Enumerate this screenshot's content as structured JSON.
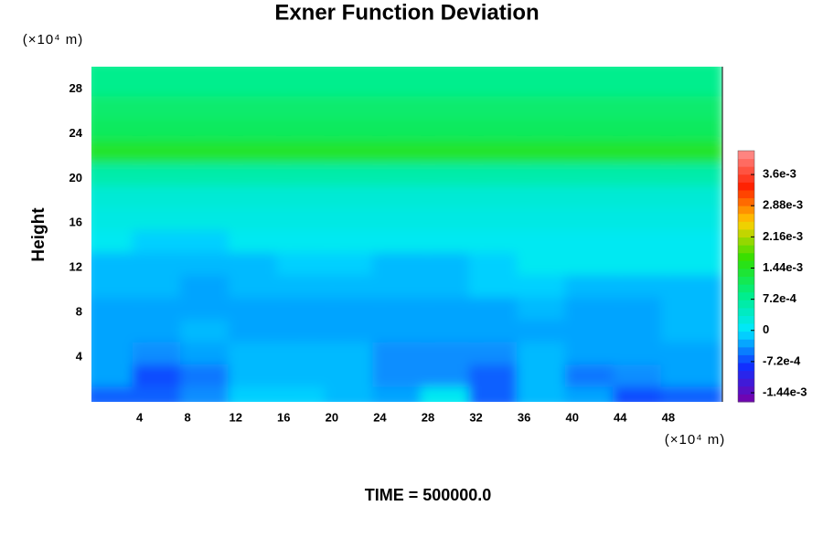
{
  "chart_data": {
    "type": "contour",
    "title": "Exner Function Deviation",
    "y_label": "Height",
    "y_unit": "(×10⁴ m)",
    "x_unit": "(×10⁴ m)",
    "footer": "TIME = 500000.0",
    "xlim": [
      0,
      52.5
    ],
    "ylim": [
      0,
      30
    ],
    "xticks": [
      4,
      8,
      12,
      16,
      20,
      24,
      28,
      32,
      36,
      40,
      44,
      48
    ],
    "yticks": [
      4,
      8,
      12,
      16,
      20,
      24,
      28
    ],
    "x": [
      2,
      6,
      10,
      14,
      18,
      22,
      26,
      30,
      34,
      38,
      42,
      46,
      50
    ],
    "y": [
      1,
      3,
      5,
      7,
      9,
      11,
      13,
      15,
      17,
      19,
      21,
      23,
      25,
      27,
      29
    ],
    "z": [
      [
        -0.0006,
        -0.0006,
        -0.0004,
        -0.0001,
        -0.0001,
        -0.0002,
        -0.0003,
        0.0001,
        -0.0006,
        -0.0002,
        -0.0003,
        -0.0007,
        -0.0006
      ],
      [
        -0.0003,
        -0.0007,
        -0.0005,
        -0.0002,
        -0.0002,
        -0.0002,
        -0.0004,
        -0.0004,
        -0.0006,
        -0.0002,
        -0.0005,
        -0.0004,
        -0.0003
      ],
      [
        -0.0003,
        -0.0004,
        -0.0003,
        -0.0002,
        -0.0002,
        -0.0002,
        -0.0004,
        -0.0004,
        -0.0004,
        -0.0002,
        -0.0003,
        -0.0003,
        -0.0003
      ],
      [
        -0.0003,
        -0.0003,
        -0.0002,
        -0.0003,
        -0.0003,
        -0.0003,
        -0.0003,
        -0.0003,
        -0.0003,
        -0.0003,
        -0.0003,
        -0.0003,
        -0.0002
      ],
      [
        -0.0003,
        -0.0003,
        -0.0003,
        -0.0003,
        -0.0003,
        -0.0003,
        -0.0003,
        -0.0003,
        -0.0003,
        -0.0002,
        -0.0003,
        -0.0003,
        -0.0002
      ],
      [
        -0.0002,
        -0.0002,
        -0.0003,
        -0.0002,
        -0.0002,
        -0.0002,
        -0.0002,
        -0.0002,
        -0.0001,
        -0.0001,
        -0.0002,
        -0.0002,
        -0.0002
      ],
      [
        -0.0002,
        -0.0002,
        -0.0002,
        -0.0002,
        -0.0001,
        -0.0001,
        -0.0002,
        -0.0002,
        -0.0001,
        0.0001,
        0.0001,
        0.0001,
        0.0001
      ],
      [
        0.0001,
        -0.0001,
        -0.0001,
        0.0001,
        0.0001,
        0.0001,
        0.0001,
        0.0001,
        0.0001,
        0.0001,
        0.0001,
        0.0001,
        0.0001
      ],
      [
        0.0002,
        0.0002,
        0.0002,
        0.0002,
        0.0002,
        0.0002,
        0.0002,
        0.0002,
        0.0002,
        0.0002,
        0.0002,
        0.0002,
        0.0002
      ],
      [
        0.0003,
        0.0003,
        0.0003,
        0.0003,
        0.0003,
        0.0003,
        0.0003,
        0.0003,
        0.0003,
        0.0003,
        0.0003,
        0.0003,
        0.0003
      ],
      [
        0.0006,
        0.0006,
        0.0006,
        0.0006,
        0.0006,
        0.0006,
        0.0006,
        0.0006,
        0.0006,
        0.0006,
        0.0006,
        0.0006,
        0.0006
      ],
      [
        0.0014,
        0.0014,
        0.0014,
        0.0014,
        0.0014,
        0.0014,
        0.0014,
        0.0014,
        0.0014,
        0.0014,
        0.0014,
        0.0014,
        0.0014
      ],
      [
        0.0011,
        0.0011,
        0.0011,
        0.0011,
        0.0011,
        0.0011,
        0.0011,
        0.0011,
        0.0011,
        0.0011,
        0.0011,
        0.0011,
        0.0011
      ],
      [
        0.001,
        0.001,
        0.001,
        0.001,
        0.001,
        0.001,
        0.001,
        0.001,
        0.001,
        0.001,
        0.001,
        0.001,
        0.001
      ],
      [
        0.0008,
        0.0008,
        0.0008,
        0.0008,
        0.0008,
        0.0008,
        0.0008,
        0.0008,
        0.0008,
        0.0008,
        0.0008,
        0.0008,
        0.0008
      ]
    ],
    "colorbar": {
      "zlim": [
        -0.00165,
        0.00415
      ],
      "colors": [
        "#7a00a8",
        "#1030ff",
        "#00e8ff",
        "#00ee88",
        "#30e000",
        "#ffd000",
        "#ff2000",
        "#ff9090"
      ],
      "ticks": [
        {
          "value": -0.00144,
          "label": "-1.44e-3"
        },
        {
          "value": -0.00072,
          "label": "-7.2e-4"
        },
        0,
        {
          "value": 0.00072,
          "label": "7.2e-4"
        },
        {
          "value": 0.00144,
          "label": "1.44e-3"
        },
        {
          "value": 0.00216,
          "label": "2.16e-3"
        },
        {
          "value": 0.00288,
          "label": "2.88e-3"
        },
        {
          "value": 0.0036,
          "label": "3.6e-3"
        }
      ]
    }
  }
}
